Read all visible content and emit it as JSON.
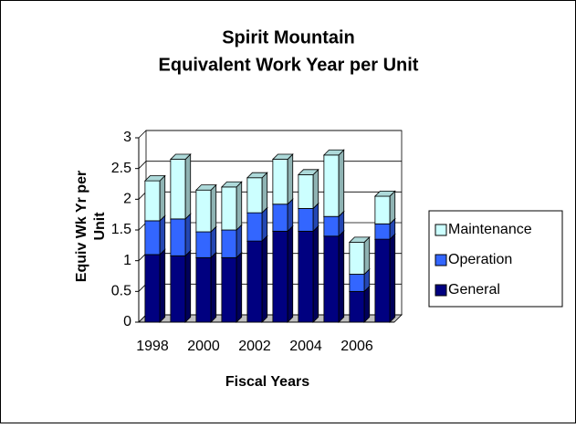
{
  "chart_data": {
    "type": "bar3d_stacked",
    "title": [
      "Spirit Mountain",
      "Equivalent Work Year per Unit"
    ],
    "ylabel": [
      "Equiv Wk Yr per",
      "Unit"
    ],
    "xlabel": "Fiscal Years",
    "categories": [
      "1998",
      null,
      "2000",
      null,
      "2002",
      null,
      "2004",
      null,
      "2006",
      null
    ],
    "series": [
      {
        "name": "General",
        "color": "#000080",
        "values": [
          1.1,
          1.08,
          1.05,
          1.05,
          1.32,
          1.48,
          1.48,
          1.4,
          0.5,
          1.35
        ]
      },
      {
        "name": "Operation",
        "color": "#3366ff",
        "values": [
          0.55,
          0.6,
          0.42,
          0.45,
          0.46,
          0.44,
          0.37,
          0.32,
          0.28,
          0.25
        ]
      },
      {
        "name": "Maintenance",
        "color": "#ccffff",
        "values": [
          0.65,
          0.97,
          0.68,
          0.7,
          0.57,
          0.73,
          0.55,
          1.0,
          0.52,
          0.45
        ]
      }
    ],
    "ylim": [
      0,
      3
    ],
    "yticks": [
      0,
      0.5,
      1,
      1.5,
      2,
      2.5,
      3
    ],
    "grid": true,
    "legend": "right"
  }
}
